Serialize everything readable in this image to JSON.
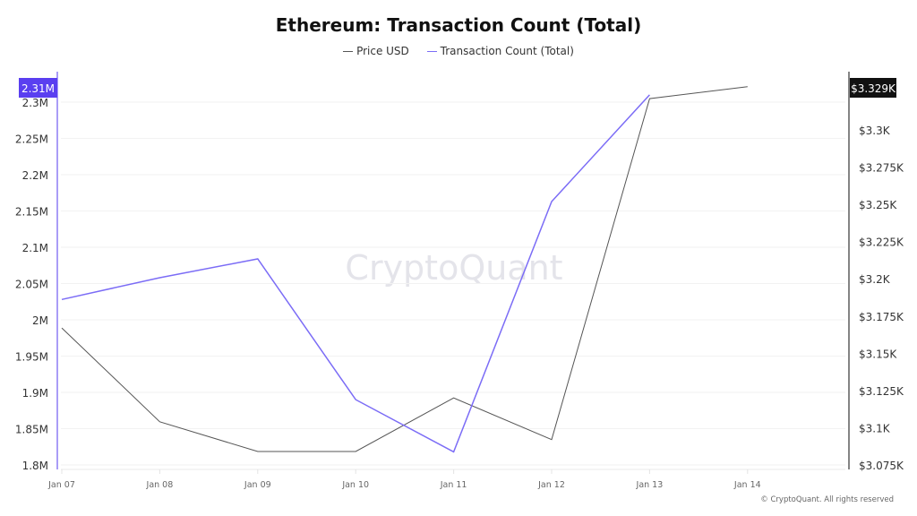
{
  "chart_data": {
    "type": "line",
    "title": "Ethereum: Transaction Count (Total)",
    "xlabel": "",
    "categories": [
      "Jan 07",
      "Jan 08",
      "Jan 09",
      "Jan 10",
      "Jan 11",
      "Jan 12",
      "Jan 13",
      "Jan 14"
    ],
    "series": [
      {
        "name": "Price USD",
        "axis": "right",
        "color": "#555555",
        "values": [
          3167,
          3104,
          3084,
          3084,
          3120,
          3092,
          3321,
          3329
        ]
      },
      {
        "name": "Transaction Count (Total)",
        "axis": "left",
        "color": "#7b6cf6",
        "values": [
          2028000,
          2058000,
          2084000,
          1890000,
          1818000,
          2163000,
          2310000,
          null
        ]
      }
    ],
    "left_axis": {
      "ylim": [
        1800000,
        2300000
      ],
      "ticks": [
        "1.8M",
        "1.85M",
        "1.9M",
        "1.95M",
        "2M",
        "2.05M",
        "2.1M",
        "2.15M",
        "2.2M",
        "2.25M",
        "2.3M"
      ],
      "current_label": "2.31M"
    },
    "right_axis": {
      "ylim": [
        3075,
        3300
      ],
      "ticks": [
        "$3.075K",
        "$3.1K",
        "$3.125K",
        "$3.15K",
        "$3.175K",
        "$3.2K",
        "$3.225K",
        "$3.25K",
        "$3.275K",
        "$3.3K"
      ],
      "current_label": "$3.329K"
    },
    "grid": true,
    "legend_position": "top"
  },
  "legend": {
    "price": "Price USD",
    "tx": "Transaction Count (Total)"
  },
  "watermark": "CryptoQuant",
  "footer": "© CryptoQuant. All rights reserved",
  "colors": {
    "tx": "#7b6cf6",
    "price": "#555555",
    "tx_badge": "#5a3ff0",
    "price_badge": "#111111"
  }
}
